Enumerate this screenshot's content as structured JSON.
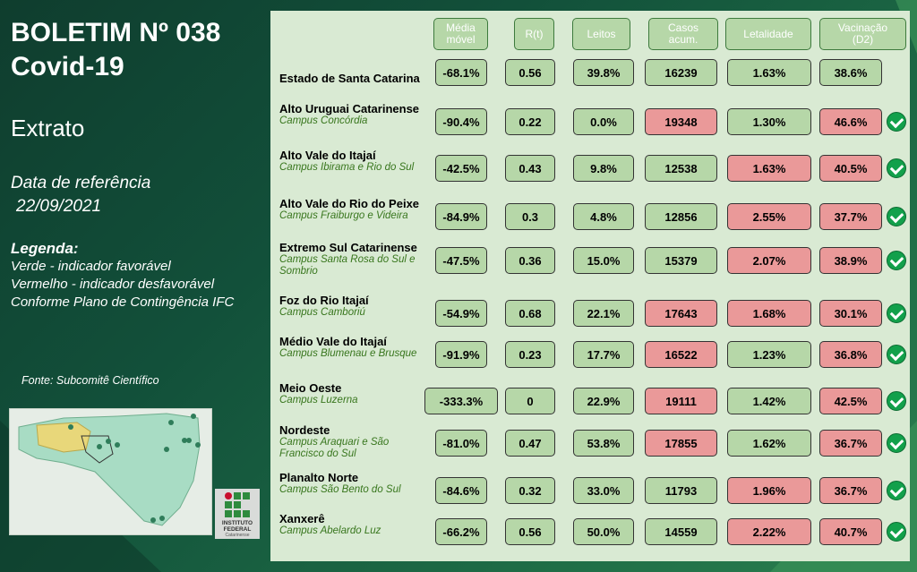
{
  "header": {
    "title_line1": "BOLETIM Nº 038",
    "title_line2": "Covid-19",
    "subtitle": "Extrato",
    "date_label": "Data de referência",
    "date_value": "22/09/2021"
  },
  "legend": {
    "title": "Legenda:",
    "line1": "Verde - indicador favorável",
    "line2": "Vermelho - indicador desfavorável",
    "line3": "Conforme Plano de Contingência IFC"
  },
  "source": "Fonte: Subcomitê Científico",
  "logo": {
    "line1": "INSTITUTO",
    "line2": "FEDERAL",
    "line3": "Catarinense"
  },
  "columns": [
    {
      "l1": "Média",
      "l2": "móvel"
    },
    {
      "l1": "R(t)",
      "l2": ""
    },
    {
      "l1": "Leitos",
      "l2": ""
    },
    {
      "l1": "Casos",
      "l2": "acum."
    },
    {
      "l1": "Letalidade",
      "l2": ""
    },
    {
      "l1": "Vacinação",
      "l2": "(D2)"
    }
  ],
  "colors": {
    "favorable": "#b6d7a8",
    "unfavorable": "#ea9999",
    "check": "#12a04b"
  },
  "rows": [
    {
      "name": "Estado de Santa Catarina",
      "campus": "",
      "values": [
        "-68.1%",
        "0.56",
        "39.8%",
        "16239",
        "1.63%",
        "38.6%"
      ],
      "status": [
        "g",
        "g",
        "g",
        "g",
        "g",
        "g"
      ],
      "check": false
    },
    {
      "name": "Alto Uruguai Catarinense",
      "campus": "Campus Concórdia",
      "values": [
        "-90.4%",
        "0.22",
        "0.0%",
        "19348",
        "1.30%",
        "46.6%"
      ],
      "status": [
        "g",
        "g",
        "g",
        "r",
        "g",
        "r"
      ],
      "check": true
    },
    {
      "name": "Alto Vale do Itajaí",
      "campus": "Campus Ibirama e Rio do Sul",
      "values": [
        "-42.5%",
        "0.43",
        "9.8%",
        "12538",
        "1.63%",
        "40.5%"
      ],
      "status": [
        "g",
        "g",
        "g",
        "g",
        "r",
        "r"
      ],
      "check": true
    },
    {
      "name": "Alto Vale do Rio do Peixe",
      "campus": "Campus Fraiburgo e Videira",
      "values": [
        "-84.9%",
        "0.3",
        "4.8%",
        "12856",
        "2.55%",
        "37.7%"
      ],
      "status": [
        "g",
        "g",
        "g",
        "g",
        "r",
        "r"
      ],
      "check": true
    },
    {
      "name": "Extremo Sul Catarinense",
      "campus": "Campus Santa Rosa do Sul e Sombrio",
      "values": [
        "-47.5%",
        "0.36",
        "15.0%",
        "15379",
        "2.07%",
        "38.9%"
      ],
      "status": [
        "g",
        "g",
        "g",
        "g",
        "r",
        "r"
      ],
      "check": true
    },
    {
      "name": "Foz do Rio Itajaí",
      "campus": "Campus Camboriú",
      "values": [
        "-54.9%",
        "0.68",
        "22.1%",
        "17643",
        "1.68%",
        "30.1%"
      ],
      "status": [
        "g",
        "g",
        "g",
        "r",
        "r",
        "r"
      ],
      "check": true
    },
    {
      "name": "Médio Vale do Itajaí",
      "campus": "Campus Blumenau e Brusque",
      "values": [
        "-91.9%",
        "0.23",
        "17.7%",
        "16522",
        "1.23%",
        "36.8%"
      ],
      "status": [
        "g",
        "g",
        "g",
        "r",
        "g",
        "r"
      ],
      "check": true
    },
    {
      "name": "Meio Oeste",
      "campus": "Campus Luzerna",
      "values": [
        "-333.3%",
        "0",
        "22.9%",
        "19111",
        "1.42%",
        "42.5%"
      ],
      "status": [
        "g",
        "g",
        "g",
        "r",
        "g",
        "r"
      ],
      "check": true
    },
    {
      "name": "Nordeste",
      "campus": "Campus Araquari e São Francisco do Sul",
      "values": [
        "-81.0%",
        "0.47",
        "53.8%",
        "17855",
        "1.62%",
        "36.7%"
      ],
      "status": [
        "g",
        "g",
        "g",
        "r",
        "g",
        "r"
      ],
      "check": true
    },
    {
      "name": "Planalto Norte",
      "campus": "Campus São Bento do Sul",
      "values": [
        "-84.6%",
        "0.32",
        "33.0%",
        "11793",
        "1.96%",
        "36.7%"
      ],
      "status": [
        "g",
        "g",
        "g",
        "g",
        "r",
        "r"
      ],
      "check": true
    },
    {
      "name": "Xanxerê",
      "campus": "Campus Abelardo Luz",
      "values": [
        "-66.2%",
        "0.56",
        "50.0%",
        "14559",
        "2.22%",
        "40.7%"
      ],
      "status": [
        "g",
        "g",
        "g",
        "g",
        "r",
        "r"
      ],
      "check": true
    }
  ]
}
